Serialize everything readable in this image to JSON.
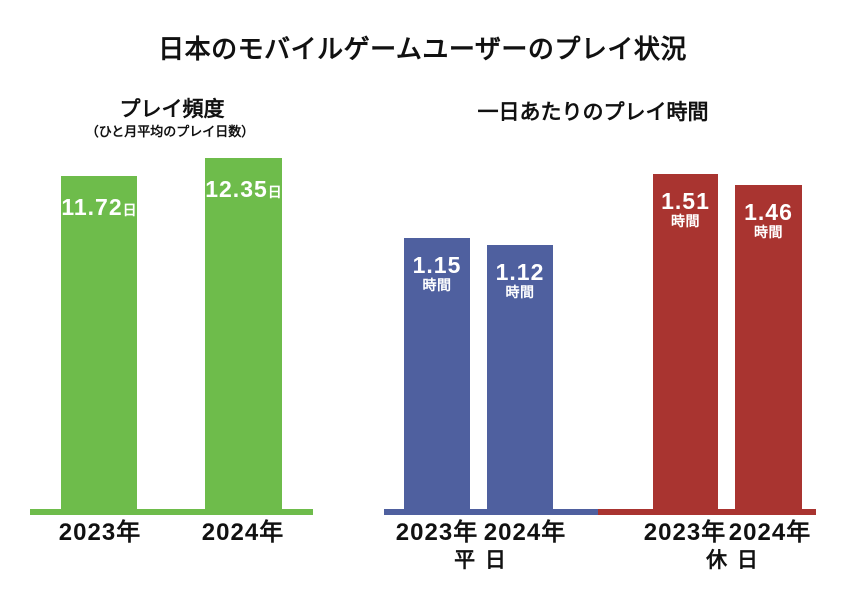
{
  "page": {
    "title": "日本のモバイルゲームユーザーのプレイ状況"
  },
  "colors": {
    "green": "#6ebc4b",
    "blue": "#4f609f",
    "red": "#a93430",
    "bar_text": "#ffffff",
    "text": "#111111"
  },
  "chart_data": [
    {
      "id": "play-frequency",
      "type": "bar",
      "title": "プレイ頻度",
      "subtitle": "（ひと月平均のプレイ日数）",
      "unit": "日",
      "categories": [
        "2023年",
        "2024年"
      ],
      "values": [
        11.72,
        12.35
      ],
      "bar_color": "#6ebc4b",
      "ylim": [
        0,
        13
      ],
      "grid": false,
      "legend": "none",
      "value_label_position": "inside-top"
    },
    {
      "id": "daily-playtime",
      "type": "bar",
      "title": "一日あたりのプレイ時間",
      "unit": "時間",
      "ylim": [
        0,
        1.6
      ],
      "grid": false,
      "legend": "none",
      "value_label_position": "inside-top",
      "groups": [
        {
          "label": "平 日",
          "color": "#4f609f",
          "categories": [
            "2023年",
            "2024年"
          ],
          "values": [
            1.15,
            1.12
          ]
        },
        {
          "label": "休 日",
          "color": "#a93430",
          "categories": [
            "2023年",
            "2024年"
          ],
          "values": [
            1.51,
            1.46
          ]
        }
      ]
    }
  ]
}
